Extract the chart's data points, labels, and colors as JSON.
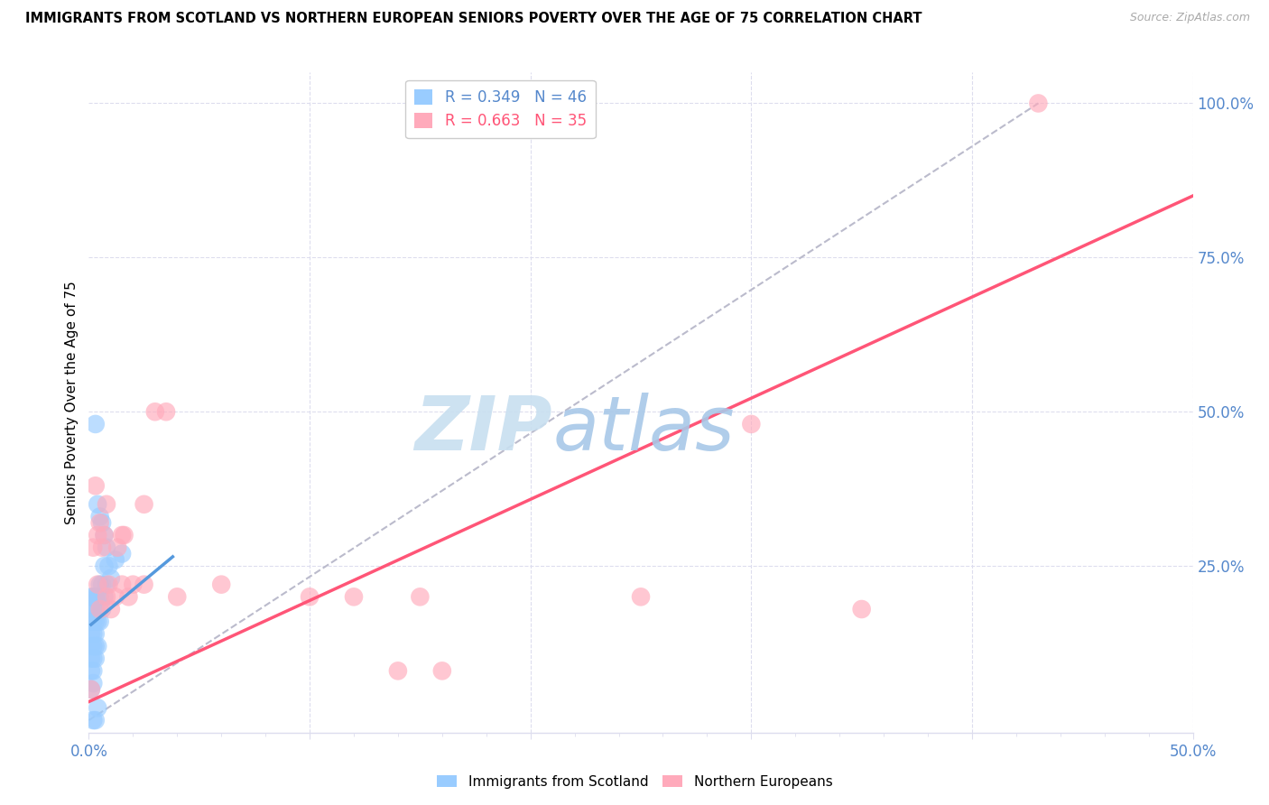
{
  "title": "IMMIGRANTS FROM SCOTLAND VS NORTHERN EUROPEAN SENIORS POVERTY OVER THE AGE OF 75 CORRELATION CHART",
  "source": "Source: ZipAtlas.com",
  "ylabel": "Seniors Poverty Over the Age of 75",
  "xlim": [
    0.0,
    0.5
  ],
  "ylim": [
    -0.02,
    1.05
  ],
  "legend_r1": "R = 0.349",
  "legend_n1": "N = 46",
  "legend_r2": "R = 0.663",
  "legend_n2": "N = 35",
  "watermark_zip": "ZIP",
  "watermark_atlas": "atlas",
  "watermark_color_zip": "#c8dff0",
  "watermark_color_atlas": "#a8c8e8",
  "scotland_color": "#99ccff",
  "northern_eu_color": "#ffaabb",
  "trendline_scotland_color": "#5599dd",
  "trendline_northern_color": "#ff5577",
  "diag_color": "#bbbbcc",
  "grid_color": "#ddddee",
  "tick_color": "#5588cc",
  "scotland_points": [
    [
      0.001,
      0.05
    ],
    [
      0.001,
      0.08
    ],
    [
      0.001,
      0.1
    ],
    [
      0.001,
      0.12
    ],
    [
      0.001,
      0.14
    ],
    [
      0.001,
      0.16
    ],
    [
      0.001,
      0.18
    ],
    [
      0.001,
      0.2
    ],
    [
      0.002,
      0.06
    ],
    [
      0.002,
      0.08
    ],
    [
      0.002,
      0.1
    ],
    [
      0.002,
      0.12
    ],
    [
      0.002,
      0.14
    ],
    [
      0.002,
      0.16
    ],
    [
      0.002,
      0.18
    ],
    [
      0.002,
      0.2
    ],
    [
      0.003,
      0.1
    ],
    [
      0.003,
      0.12
    ],
    [
      0.003,
      0.14
    ],
    [
      0.003,
      0.16
    ],
    [
      0.003,
      0.18
    ],
    [
      0.003,
      0.2
    ],
    [
      0.004,
      0.12
    ],
    [
      0.004,
      0.16
    ],
    [
      0.004,
      0.2
    ],
    [
      0.005,
      0.16
    ],
    [
      0.005,
      0.2
    ],
    [
      0.005,
      0.22
    ],
    [
      0.006,
      0.18
    ],
    [
      0.006,
      0.22
    ],
    [
      0.007,
      0.2
    ],
    [
      0.007,
      0.25
    ],
    [
      0.008,
      0.22
    ],
    [
      0.009,
      0.25
    ],
    [
      0.01,
      0.23
    ],
    [
      0.012,
      0.26
    ],
    [
      0.015,
      0.27
    ],
    [
      0.003,
      0.48
    ],
    [
      0.004,
      0.35
    ],
    [
      0.005,
      0.33
    ],
    [
      0.006,
      0.32
    ],
    [
      0.007,
      0.3
    ],
    [
      0.008,
      0.28
    ],
    [
      0.002,
      0.0
    ],
    [
      0.003,
      0.0
    ],
    [
      0.004,
      0.02
    ]
  ],
  "northern_eu_points": [
    [
      0.001,
      0.05
    ],
    [
      0.002,
      0.28
    ],
    [
      0.003,
      0.38
    ],
    [
      0.004,
      0.3
    ],
    [
      0.004,
      0.22
    ],
    [
      0.005,
      0.18
    ],
    [
      0.005,
      0.32
    ],
    [
      0.006,
      0.28
    ],
    [
      0.007,
      0.3
    ],
    [
      0.008,
      0.35
    ],
    [
      0.008,
      0.2
    ],
    [
      0.009,
      0.22
    ],
    [
      0.01,
      0.18
    ],
    [
      0.012,
      0.2
    ],
    [
      0.013,
      0.28
    ],
    [
      0.015,
      0.3
    ],
    [
      0.015,
      0.22
    ],
    [
      0.016,
      0.3
    ],
    [
      0.018,
      0.2
    ],
    [
      0.02,
      0.22
    ],
    [
      0.025,
      0.35
    ],
    [
      0.025,
      0.22
    ],
    [
      0.03,
      0.5
    ],
    [
      0.035,
      0.5
    ],
    [
      0.04,
      0.2
    ],
    [
      0.06,
      0.22
    ],
    [
      0.1,
      0.2
    ],
    [
      0.12,
      0.2
    ],
    [
      0.14,
      0.08
    ],
    [
      0.15,
      0.2
    ],
    [
      0.16,
      0.08
    ],
    [
      0.25,
      0.2
    ],
    [
      0.3,
      0.48
    ],
    [
      0.35,
      0.18
    ],
    [
      0.43,
      1.0
    ]
  ],
  "scotland_trendline": [
    [
      0.001,
      0.155
    ],
    [
      0.038,
      0.265
    ]
  ],
  "northern_trendline": [
    [
      0.0,
      0.03
    ],
    [
      0.5,
      0.85
    ]
  ]
}
